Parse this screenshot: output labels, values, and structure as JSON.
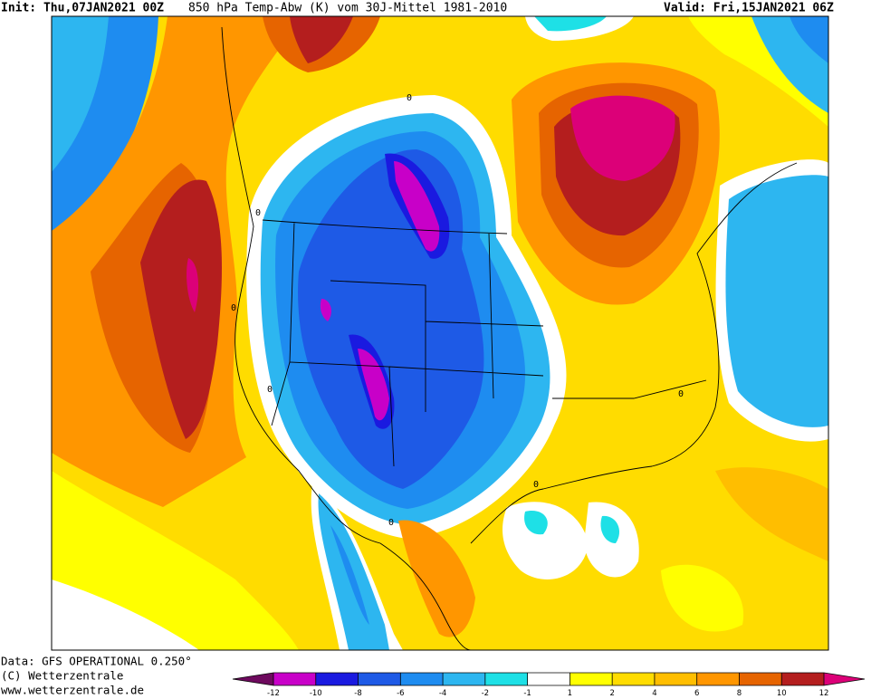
{
  "header": {
    "init": "Init: Thu,07JAN2021 00Z",
    "title": "850 hPa Temp-Abw (K) vom 30J-Mittel 1981-2010",
    "valid": "Valid: Fri,15JAN2021 06Z"
  },
  "footer": [
    "Data: GFS OPERATIONAL 0.250°",
    "(C) Wetterzentrale",
    "www.wetterzentrale.de"
  ],
  "colorbar": {
    "ticks": [
      -12,
      -10,
      -8,
      -6,
      -4,
      -2,
      -1,
      1,
      2,
      4,
      6,
      8,
      10,
      12
    ],
    "colors": [
      "#6e0a5e",
      "#c800c8",
      "#1a1ae0",
      "#1e5ae6",
      "#1e8cf0",
      "#2db6f0",
      "#1ee0e6",
      "#ffffff",
      "#ffff00",
      "#ffdc00",
      "#ffbe00",
      "#ff9600",
      "#e66400",
      "#b41e1e",
      "#dc0078"
    ]
  },
  "contour_labels": [
    "0",
    "0",
    "0",
    "0",
    "0",
    "0",
    "0"
  ]
}
